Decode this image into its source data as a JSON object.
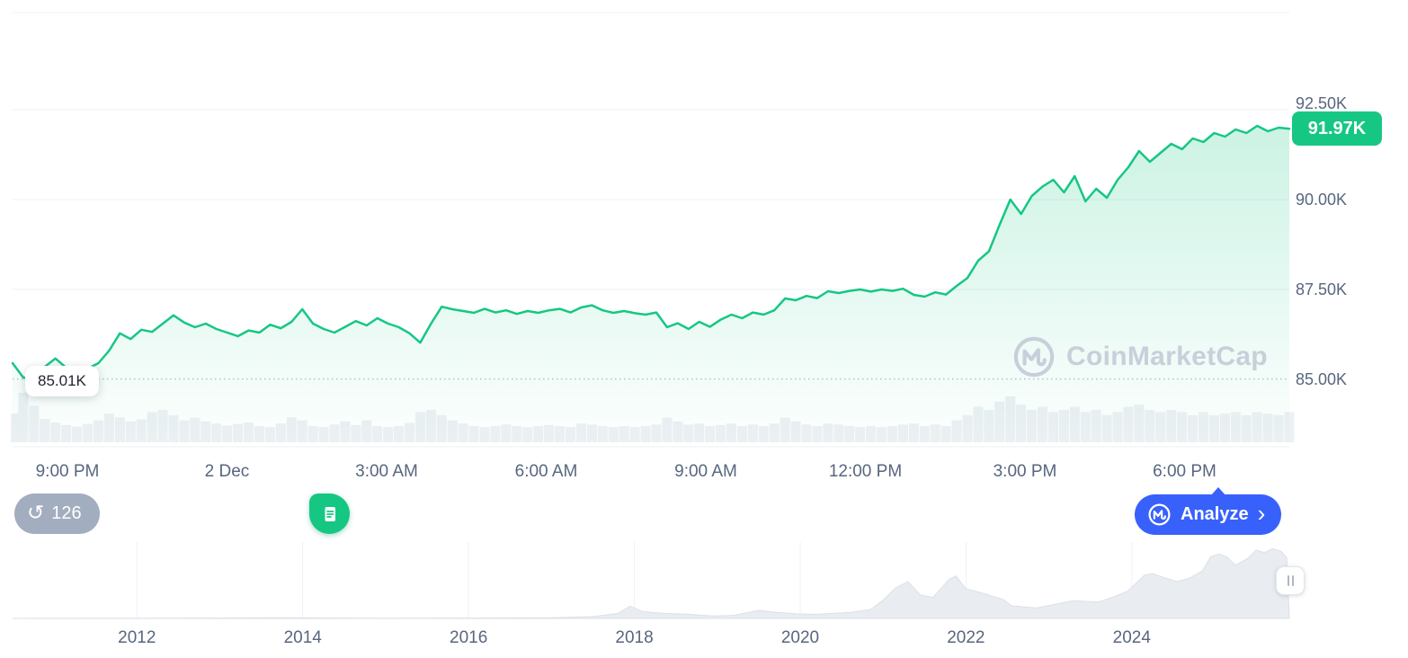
{
  "colors": {
    "accent_green": "#16c784",
    "accent_blue": "#3861fb",
    "axis_text": "#58667e",
    "grid_line": "#eff1f5",
    "dotted_line": "#b7bfcc",
    "volume_bar": "#edf0f4",
    "brush_fill": "#e9ecf1",
    "brush_edge": "#dce0e8",
    "watermark": "#c8cfda",
    "history_badge_bg": "#a2adbf"
  },
  "price_chart": {
    "current_price_label": "91.97K",
    "low_label": "85.01K"
  },
  "toolbar": {
    "history_count": "126",
    "analyze_label": "Analyze"
  },
  "icons": {
    "history_glyph": "↺",
    "chevron_glyph": "›"
  },
  "watermark": {
    "text": "CoinMarketCap"
  },
  "chart_data": [
    {
      "type": "area",
      "name": "price-intraday",
      "unit": "K USD",
      "x_tick_labels": [
        "9:00 PM",
        "2 Dec",
        "3:00 AM",
        "6:00 AM",
        "9:00 AM",
        "12:00 PM",
        "3:00 PM",
        "6:00 PM"
      ],
      "y_ticks": [
        {
          "label": "92.50K",
          "value": 92.5
        },
        {
          "label": "90.00K",
          "value": 90
        },
        {
          "label": "87.50K",
          "value": 87.5
        },
        {
          "label": "85.00K",
          "value": 85
        }
      ],
      "y_axis_range": [
        85,
        92.5
      ],
      "low_marker": {
        "label": "85.01K",
        "value": 85.01
      },
      "last_price": {
        "label": "91.97K",
        "value": 91.97
      },
      "series": [
        {
          "name": "price",
          "values": [
            85.45,
            85.05,
            85.01,
            85.35,
            85.58,
            85.32,
            85.22,
            85.3,
            85.45,
            85.8,
            86.28,
            86.12,
            86.38,
            86.32,
            86.55,
            86.78,
            86.58,
            86.45,
            86.55,
            86.4,
            86.3,
            86.2,
            86.36,
            86.3,
            86.52,
            86.42,
            86.6,
            86.95,
            86.55,
            86.4,
            86.3,
            86.46,
            86.62,
            86.5,
            86.7,
            86.55,
            86.45,
            86.28,
            86.02,
            86.55,
            87.02,
            86.95,
            86.9,
            86.85,
            86.96,
            86.86,
            86.92,
            86.82,
            86.9,
            86.85,
            86.92,
            86.96,
            86.86,
            87.0,
            87.06,
            86.92,
            86.85,
            86.9,
            86.84,
            86.8,
            86.86,
            86.45,
            86.56,
            86.4,
            86.6,
            86.46,
            86.66,
            86.8,
            86.7,
            86.86,
            86.8,
            86.92,
            87.25,
            87.2,
            87.32,
            87.26,
            87.45,
            87.4,
            87.46,
            87.5,
            87.44,
            87.5,
            87.46,
            87.52,
            87.35,
            87.3,
            87.42,
            87.36,
            87.6,
            87.82,
            88.3,
            88.56,
            89.3,
            90.0,
            89.6,
            90.1,
            90.36,
            90.55,
            90.2,
            90.65,
            89.95,
            90.3,
            90.05,
            90.55,
            90.9,
            91.35,
            91.05,
            91.3,
            91.55,
            91.4,
            91.7,
            91.6,
            91.85,
            91.75,
            91.95,
            91.85,
            92.05,
            91.9,
            92.0,
            91.97
          ]
        }
      ],
      "volume_relative": [
        0.55,
        0.95,
        0.7,
        0.45,
        0.38,
        0.33,
        0.3,
        0.35,
        0.42,
        0.55,
        0.48,
        0.4,
        0.44,
        0.58,
        0.62,
        0.52,
        0.42,
        0.47,
        0.4,
        0.36,
        0.32,
        0.35,
        0.38,
        0.31,
        0.29,
        0.36,
        0.48,
        0.42,
        0.31,
        0.29,
        0.34,
        0.4,
        0.33,
        0.42,
        0.31,
        0.29,
        0.31,
        0.37,
        0.58,
        0.62,
        0.52,
        0.42,
        0.36,
        0.31,
        0.29,
        0.31,
        0.34,
        0.31,
        0.29,
        0.31,
        0.33,
        0.31,
        0.29,
        0.36,
        0.34,
        0.31,
        0.29,
        0.31,
        0.29,
        0.31,
        0.34,
        0.47,
        0.4,
        0.34,
        0.36,
        0.31,
        0.33,
        0.36,
        0.31,
        0.34,
        0.31,
        0.36,
        0.47,
        0.4,
        0.34,
        0.31,
        0.36,
        0.34,
        0.31,
        0.29,
        0.31,
        0.29,
        0.31,
        0.34,
        0.36,
        0.31,
        0.34,
        0.31,
        0.42,
        0.52,
        0.68,
        0.62,
        0.78,
        0.88,
        0.72,
        0.62,
        0.68,
        0.58,
        0.62,
        0.68,
        0.58,
        0.62,
        0.52,
        0.58,
        0.68,
        0.72,
        0.62,
        0.58,
        0.62,
        0.58,
        0.52,
        0.58,
        0.52,
        0.55,
        0.58,
        0.52,
        0.58,
        0.55,
        0.52,
        0.58
      ]
    },
    {
      "type": "area",
      "name": "history-brush",
      "x_tick_labels": [
        "2012",
        "2014",
        "2016",
        "2018",
        "2020",
        "2022",
        "2024"
      ],
      "x_tick_years": [
        2012,
        2014,
        2016,
        2018,
        2020,
        2022,
        2024
      ],
      "xlim": [
        2010.5,
        2025.9
      ],
      "ylim": [
        0,
        115
      ],
      "points": [
        [
          2010.6,
          0.2
        ],
        [
          2011.5,
          0.3
        ],
        [
          2012.0,
          0.4
        ],
        [
          2012.8,
          0.6
        ],
        [
          2013.5,
          1.0
        ],
        [
          2013.95,
          1.2
        ],
        [
          2014.4,
          0.6
        ],
        [
          2015.0,
          0.3
        ],
        [
          2015.8,
          0.5
        ],
        [
          2016.5,
          0.8
        ],
        [
          2017.0,
          1.1
        ],
        [
          2017.5,
          2.8
        ],
        [
          2017.8,
          8
        ],
        [
          2017.95,
          19.5
        ],
        [
          2018.1,
          11
        ],
        [
          2018.3,
          8.5
        ],
        [
          2018.6,
          7
        ],
        [
          2018.95,
          3.8
        ],
        [
          2019.2,
          5
        ],
        [
          2019.5,
          12.8
        ],
        [
          2019.7,
          10
        ],
        [
          2019.95,
          7.2
        ],
        [
          2020.2,
          6.5
        ],
        [
          2020.6,
          9.5
        ],
        [
          2020.85,
          14
        ],
        [
          2021.0,
          29
        ],
        [
          2021.15,
          48
        ],
        [
          2021.3,
          58
        ],
        [
          2021.45,
          37
        ],
        [
          2021.6,
          33
        ],
        [
          2021.8,
          62
        ],
        [
          2021.88,
          67
        ],
        [
          2022.0,
          47
        ],
        [
          2022.2,
          40
        ],
        [
          2022.45,
          30
        ],
        [
          2022.55,
          20
        ],
        [
          2022.85,
          16.5
        ],
        [
          2023.1,
          23
        ],
        [
          2023.3,
          28
        ],
        [
          2023.6,
          26
        ],
        [
          2023.8,
          35
        ],
        [
          2023.95,
          43
        ],
        [
          2024.15,
          68
        ],
        [
          2024.25,
          71
        ],
        [
          2024.4,
          64
        ],
        [
          2024.55,
          58
        ],
        [
          2024.7,
          64
        ],
        [
          2024.85,
          75
        ],
        [
          2024.95,
          97
        ],
        [
          2025.05,
          102
        ],
        [
          2025.15,
          97
        ],
        [
          2025.25,
          84
        ],
        [
          2025.4,
          95
        ],
        [
          2025.5,
          108
        ],
        [
          2025.6,
          104
        ],
        [
          2025.7,
          110
        ],
        [
          2025.8,
          106
        ],
        [
          2025.87,
          96
        ]
      ]
    }
  ]
}
